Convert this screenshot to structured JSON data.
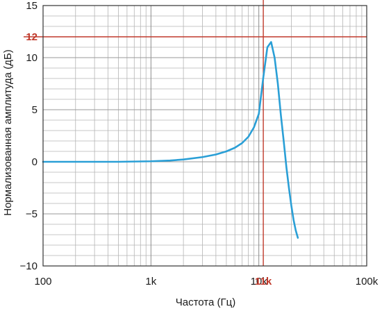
{
  "chart_data": {
    "type": "line",
    "title": "",
    "xlabel": "Частота (Гц)",
    "ylabel": "Нормализованная амплитуда (дБ)",
    "xscale": "log",
    "xlim": [
      100,
      100000
    ],
    "ylim": [
      -10,
      15
    ],
    "grid": true,
    "x_ticks": [
      {
        "value": 100,
        "label": "100"
      },
      {
        "value": 1000,
        "label": "1k"
      },
      {
        "value": 10000,
        "label": "10k"
      },
      {
        "value": 100000,
        "label": "100k"
      }
    ],
    "y_ticks": [
      {
        "value": -10,
        "label": "−10"
      },
      {
        "value": -5,
        "label": "−5"
      },
      {
        "value": 0,
        "label": "0"
      },
      {
        "value": 5,
        "label": "5"
      },
      {
        "value": 10,
        "label": "10"
      },
      {
        "value": 15,
        "label": "15"
      }
    ],
    "markers": {
      "x": {
        "value": 11000,
        "label": "11k"
      },
      "y": {
        "value": 12,
        "label": "12"
      }
    },
    "colors": {
      "line": "#2a9fd6",
      "marker": "#c0392b",
      "frame": "#333333"
    },
    "series": [
      {
        "x": [
          100,
          200,
          500,
          1000,
          1500,
          2000,
          3000,
          4000,
          5000,
          6000,
          7000,
          8000,
          9000,
          10000,
          11000,
          12000,
          13000,
          14000,
          15000,
          16000,
          17000,
          18000,
          19000,
          20000,
          21000,
          22000,
          23000
        ],
        "y": [
          0,
          0,
          0,
          0.05,
          0.12,
          0.22,
          0.45,
          0.7,
          1.0,
          1.35,
          1.8,
          2.4,
          3.3,
          4.6,
          8.1,
          11.0,
          11.5,
          10.0,
          7.5,
          4.5,
          2.0,
          -0.5,
          -2.5,
          -4.2,
          -5.6,
          -6.6,
          -7.3
        ]
      }
    ]
  }
}
